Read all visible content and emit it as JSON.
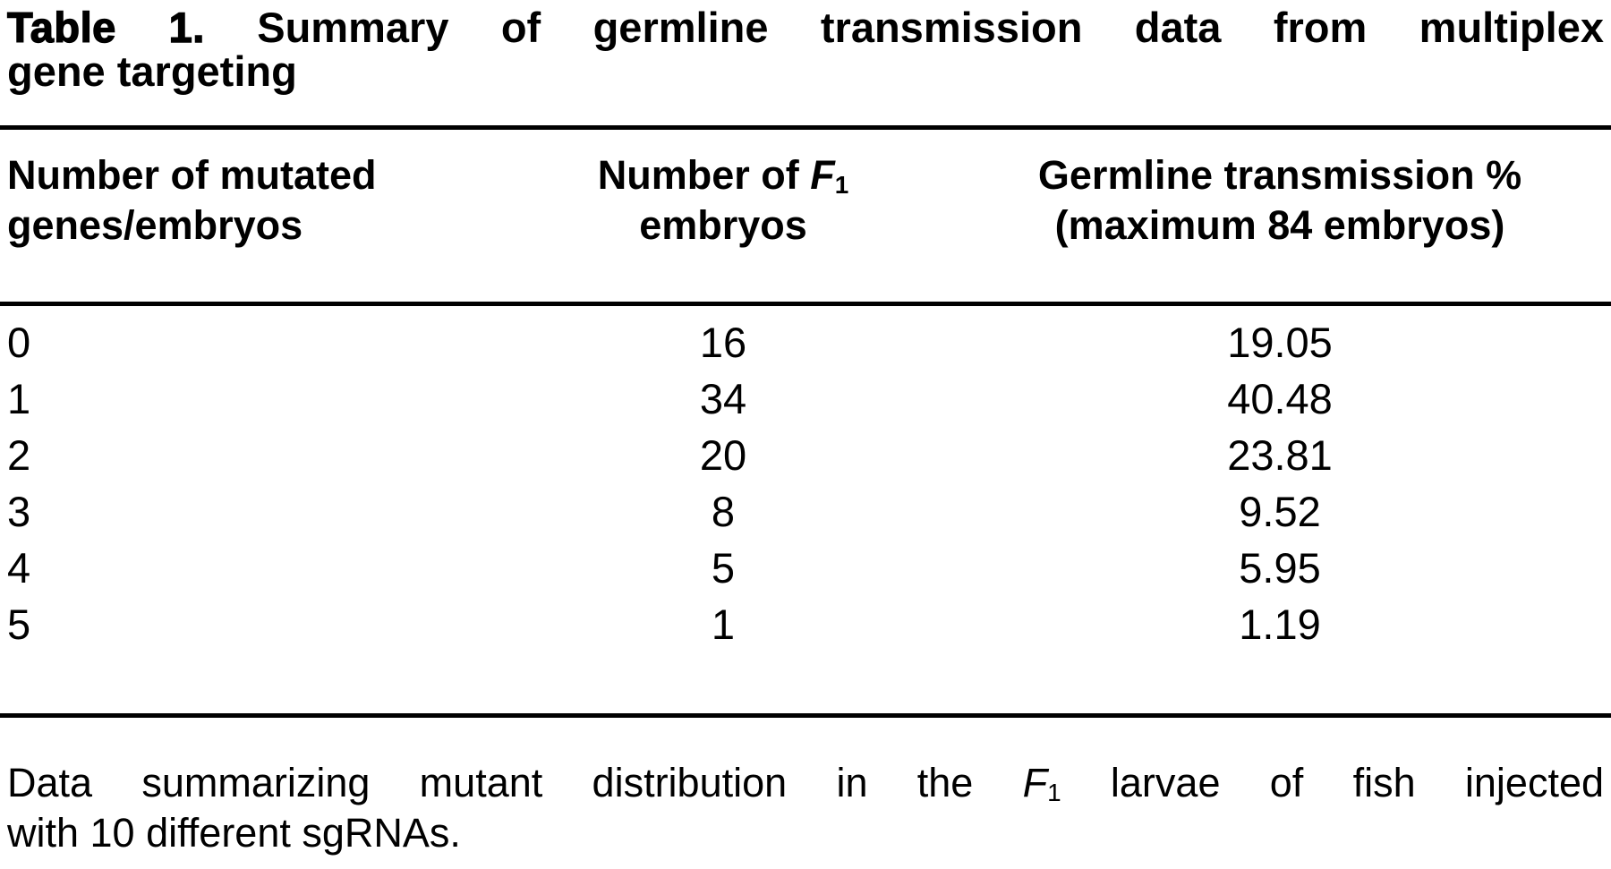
{
  "colors": {
    "text": "#000000",
    "background": "#ffffff",
    "rule": "#000000"
  },
  "title": {
    "label": "Table 1.",
    "line1": "Summary of germline transmission data from multiplex",
    "line2": "gene targeting"
  },
  "headers": {
    "col1_line1": "Number of mutated",
    "col1_line2": "genes/embryos",
    "col2_prefix": "Number of ",
    "col2_f_letter": "F",
    "col2_f_sub": "1",
    "col2_line2": "embryos",
    "col3_line1": "Germline transmission %",
    "col3_line2": "(maximum 84 embryos)"
  },
  "rows": [
    {
      "genes": "0",
      "embryos": "16",
      "pct": "19.05"
    },
    {
      "genes": "1",
      "embryos": "34",
      "pct": "40.48"
    },
    {
      "genes": "2",
      "embryos": "20",
      "pct": "23.81"
    },
    {
      "genes": "3",
      "embryos": "8",
      "pct": "9.52"
    },
    {
      "genes": "4",
      "embryos": "5",
      "pct": "5.95"
    },
    {
      "genes": "5",
      "embryos": "1",
      "pct": "1.19"
    }
  ],
  "footnote": {
    "part1": "Data summarizing mutant distribution in the ",
    "f_letter": "F",
    "f_sub": "1",
    "part2": " larvae of fish injected",
    "line2": "with 10 different sgRNAs."
  },
  "chart_data": {
    "type": "table",
    "title": "Table 1. Summary of germline transmission data from multiplex gene targeting",
    "columns": [
      "Number of mutated genes/embryos",
      "Number of F1 embryos",
      "Germline transmission % (maximum 84 embryos)"
    ],
    "rows": [
      [
        0,
        16,
        19.05
      ],
      [
        1,
        34,
        40.48
      ],
      [
        2,
        20,
        23.81
      ],
      [
        3,
        8,
        9.52
      ],
      [
        4,
        5,
        5.95
      ],
      [
        5,
        1,
        1.19
      ]
    ],
    "note": "Data summarizing mutant distribution in the F1 larvae of fish injected with 10 different sgRNAs."
  }
}
